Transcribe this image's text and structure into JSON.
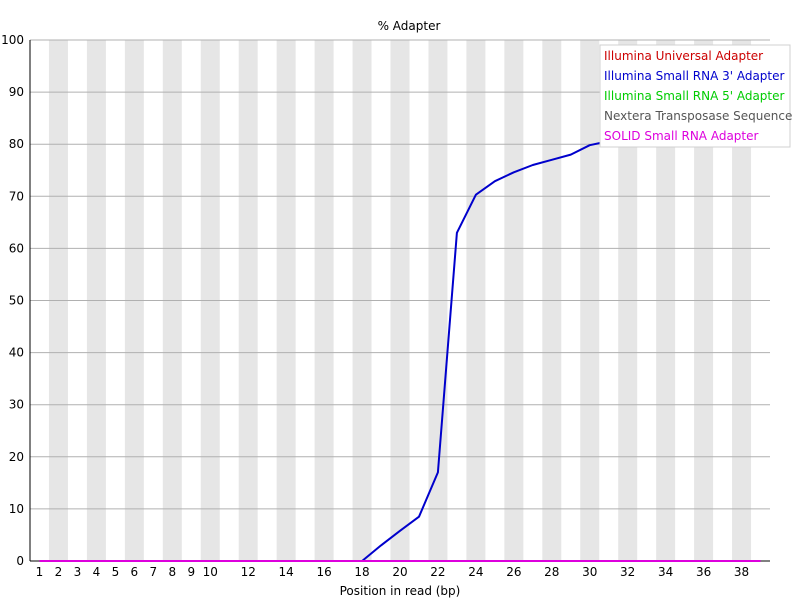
{
  "chart_data": {
    "type": "line",
    "title": "% Adapter",
    "xlabel": "Position in read (bp)",
    "ylabel": "",
    "ylim": [
      0,
      100
    ],
    "yticks": [
      0,
      10,
      20,
      30,
      40,
      50,
      60,
      70,
      80,
      90,
      100
    ],
    "x_tick_labels": [
      "1",
      "2",
      "3",
      "4",
      "5",
      "6",
      "7",
      "8",
      "9",
      "10",
      "12",
      "14",
      "16",
      "18",
      "20",
      "22",
      "24",
      "26",
      "28",
      "30",
      "32",
      "34",
      "36",
      "38"
    ],
    "grid": true,
    "legend_position": "top-right",
    "x": [
      1,
      2,
      3,
      4,
      5,
      6,
      7,
      8,
      9,
      10,
      11,
      12,
      13,
      14,
      15,
      16,
      17,
      18,
      19,
      20,
      21,
      22,
      23,
      24,
      25,
      26,
      27,
      28,
      29,
      30,
      31,
      32,
      33,
      34,
      35,
      36,
      37,
      38,
      39
    ],
    "series": [
      {
        "name": "Illumina Universal Adapter",
        "color": "#cc0000",
        "values": [
          0,
          0,
          0,
          0,
          0,
          0,
          0,
          0,
          0,
          0,
          0,
          0,
          0,
          0,
          0,
          0,
          0,
          0,
          0,
          0,
          0,
          0,
          0,
          0,
          0,
          0,
          0,
          0,
          0,
          0,
          0,
          0,
          0,
          0,
          0,
          0,
          0,
          0,
          0
        ]
      },
      {
        "name": "Illumina Small RNA 3' Adapter",
        "color": "#0000cc",
        "values": [
          0,
          0,
          0,
          0,
          0,
          0,
          0,
          0,
          0,
          0,
          0,
          0,
          0,
          0,
          0,
          0,
          0,
          0,
          3,
          5.8,
          8.5,
          17,
          63,
          70.3,
          72.9,
          74.6,
          76,
          77,
          78,
          79.8,
          80.6,
          81.2,
          81.7,
          82.1,
          82.5,
          82.8,
          83.1,
          83.3,
          83.5
        ]
      },
      {
        "name": "Illumina Small RNA 5' Adapter",
        "color": "#00cc00",
        "values": [
          0,
          0,
          0,
          0,
          0,
          0,
          0,
          0,
          0,
          0,
          0,
          0,
          0,
          0,
          0,
          0,
          0,
          0,
          0,
          0,
          0,
          0,
          0,
          0,
          0,
          0,
          0,
          0,
          0,
          0,
          0,
          0,
          0,
          0,
          0,
          0,
          0,
          0,
          0
        ]
      },
      {
        "name": "Nextera Transposase Sequence",
        "color": "#555555",
        "values": [
          0,
          0,
          0,
          0,
          0,
          0,
          0,
          0,
          0,
          0,
          0,
          0,
          0,
          0,
          0,
          0,
          0,
          0,
          0,
          0,
          0,
          0,
          0,
          0,
          0,
          0,
          0,
          0,
          0,
          0,
          0,
          0,
          0,
          0,
          0,
          0,
          0,
          0,
          0
        ]
      },
      {
        "name": "SOLID Small RNA Adapter",
        "color": "#dd00dd",
        "values": [
          0,
          0,
          0,
          0,
          0,
          0,
          0,
          0,
          0,
          0,
          0,
          0,
          0,
          0,
          0,
          0,
          0,
          0,
          0,
          0,
          0,
          0,
          0,
          0,
          0,
          0,
          0,
          0,
          0,
          0,
          0,
          0,
          0,
          0,
          0,
          0,
          0,
          0,
          0
        ]
      }
    ]
  }
}
